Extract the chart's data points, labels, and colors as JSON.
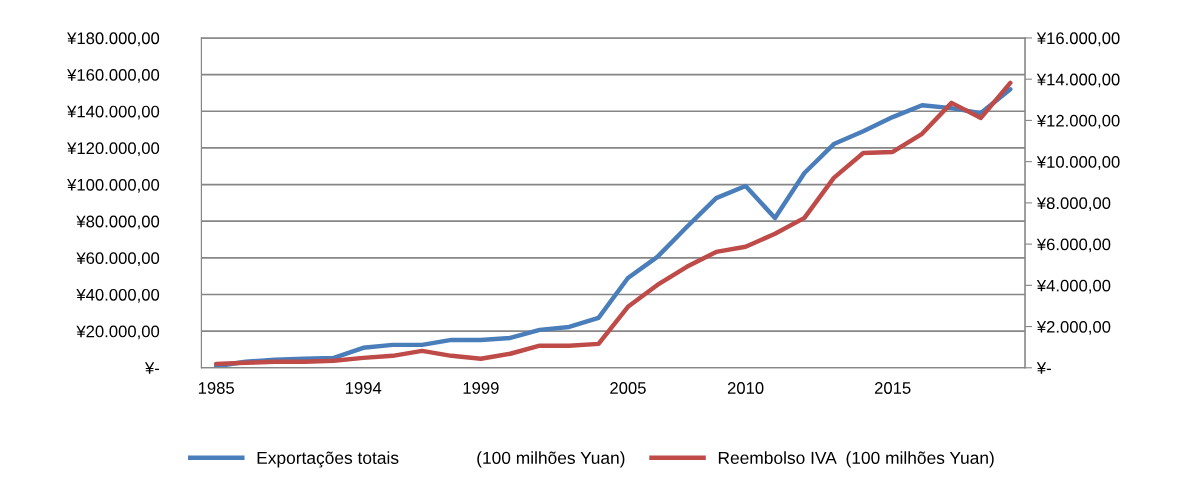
{
  "chart_data": {
    "type": "line",
    "categories": [
      "1985",
      null,
      null,
      null,
      null,
      "1994",
      null,
      null,
      null,
      "1999",
      null,
      null,
      null,
      null,
      "2005",
      null,
      null,
      null,
      "2010",
      null,
      null,
      null,
      null,
      "2015",
      null,
      null,
      null,
      null
    ],
    "series": [
      {
        "name": "Exportações totais                (100 milhões Yuan)",
        "color": "#4a7ebb",
        "values": [
          800,
          3300,
          4400,
          4900,
          5400,
          10900,
          12500,
          12500,
          15200,
          15200,
          16300,
          20700,
          22300,
          27200,
          49000,
          60500,
          76800,
          92600,
          99200,
          81700,
          106300,
          122100,
          129100,
          136800,
          143300,
          141700,
          139000,
          152000
        ]
      },
      {
        "name": "Reembolso IVA  (100 milhões Yuan)",
        "color": "#be4b48",
        "axis": "y2",
        "values": [
          190,
          240,
          290,
          290,
          340,
          480,
          580,
          820,
          580,
          440,
          680,
          1070,
          1070,
          1160,
          2960,
          4020,
          4900,
          5620,
          5870,
          6500,
          7270,
          9210,
          10420,
          10470,
          11350,
          12850,
          12120,
          13820
        ]
      }
    ],
    "ylim": [
      0,
      180000
    ],
    "yticks": [
      {
        "value": 0,
        "label": "¥-"
      },
      {
        "value": 20000,
        "label": "¥20.000,00"
      },
      {
        "value": 40000,
        "label": "¥40.000,00"
      },
      {
        "value": 60000,
        "label": "¥60.000,00"
      },
      {
        "value": 80000,
        "label": "¥80.000,00"
      },
      {
        "value": 100000,
        "label": "¥100.000,00"
      },
      {
        "value": 120000,
        "label": "¥120.000,00"
      },
      {
        "value": 140000,
        "label": "¥140.000,00"
      },
      {
        "value": 160000,
        "label": "¥160.000,00"
      },
      {
        "value": 180000,
        "label": "¥180.000,00"
      }
    ],
    "y2lim": [
      0,
      16000
    ],
    "y2ticks": [
      {
        "value": 0,
        "label": "¥-"
      },
      {
        "value": 2000,
        "label": "¥2.000,00"
      },
      {
        "value": 4000,
        "label": "¥4.000,00"
      },
      {
        "value": 6000,
        "label": "¥6.000,00"
      },
      {
        "value": 8000,
        "label": "¥8.000,00"
      },
      {
        "value": 10000,
        "label": "¥10.000,00"
      },
      {
        "value": 12000,
        "label": "¥12.000,00"
      },
      {
        "value": 14000,
        "label": "¥14.000,00"
      },
      {
        "value": 16000,
        "label": "¥16.000,00"
      }
    ],
    "grid": "y",
    "legend": "bottom",
    "marker": "none",
    "line_style": "solid"
  }
}
